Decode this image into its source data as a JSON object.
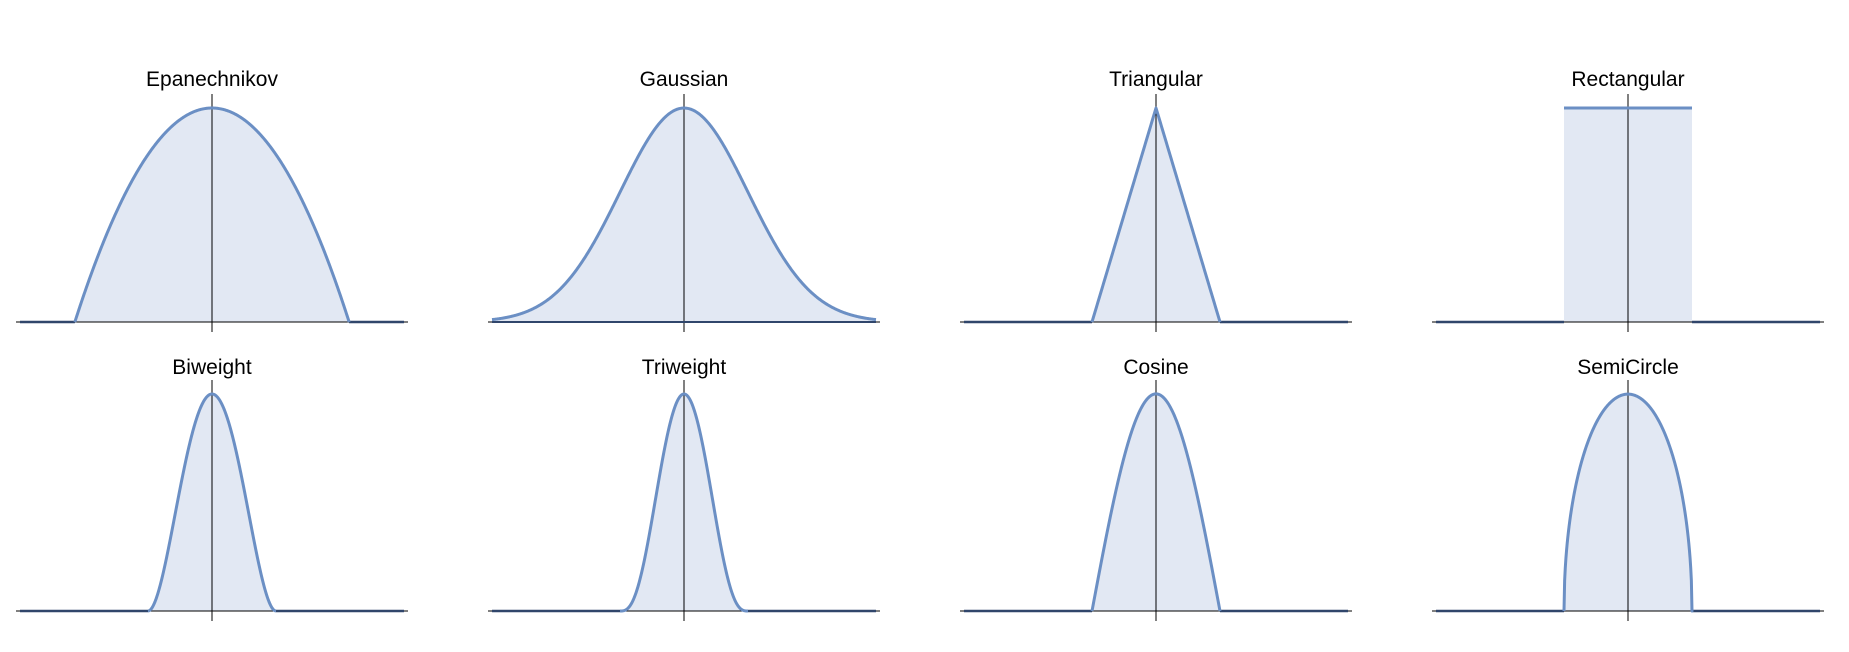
{
  "colors": {
    "curve": "#6b8fc4",
    "fill": "#e2e8f3",
    "baseline": "#30466b",
    "axis": "#000000"
  },
  "chart_data": [
    {
      "type": "line",
      "title": "Epanechnikov",
      "kernel": "epanechnikov",
      "xlim": [
        -1.4,
        1.4
      ],
      "ylim": [
        0,
        0.75
      ],
      "peak": 0.75,
      "grid": false,
      "legend": "none"
    },
    {
      "type": "line",
      "title": "Gaussian",
      "kernel": "gaussian",
      "xlim": [
        -3,
        3
      ],
      "ylim": [
        0,
        0.399
      ],
      "peak": 0.399,
      "grid": false,
      "legend": "none"
    },
    {
      "type": "line",
      "title": "Triangular",
      "kernel": "triangular",
      "xlim": [
        -3,
        3
      ],
      "ylim": [
        0,
        1
      ],
      "peak": 1,
      "grid": false,
      "legend": "none"
    },
    {
      "type": "line",
      "title": "Rectangular",
      "kernel": "rectangular",
      "xlim": [
        -3,
        3
      ],
      "ylim": [
        0,
        0.5
      ],
      "peak": 0.5,
      "grid": false,
      "legend": "none"
    },
    {
      "type": "line",
      "title": "Biweight",
      "kernel": "biweight",
      "xlim": [
        -3,
        3
      ],
      "ylim": [
        0,
        0.9375
      ],
      "peak": 0.9375,
      "grid": false,
      "legend": "none"
    },
    {
      "type": "line",
      "title": "Triweight",
      "kernel": "triweight",
      "xlim": [
        -3,
        3
      ],
      "ylim": [
        0,
        1.09375
      ],
      "peak": 1.09375,
      "grid": false,
      "legend": "none"
    },
    {
      "type": "line",
      "title": "Cosine",
      "kernel": "cosine",
      "xlim": [
        -3,
        3
      ],
      "ylim": [
        0,
        0.785
      ],
      "peak": 0.785,
      "grid": false,
      "legend": "none"
    },
    {
      "type": "line",
      "title": "SemiCircle",
      "kernel": "semicircle",
      "xlim": [
        -3,
        3
      ],
      "ylim": [
        0,
        0.637
      ],
      "peak": 0.637,
      "grid": false,
      "legend": "none"
    }
  ]
}
